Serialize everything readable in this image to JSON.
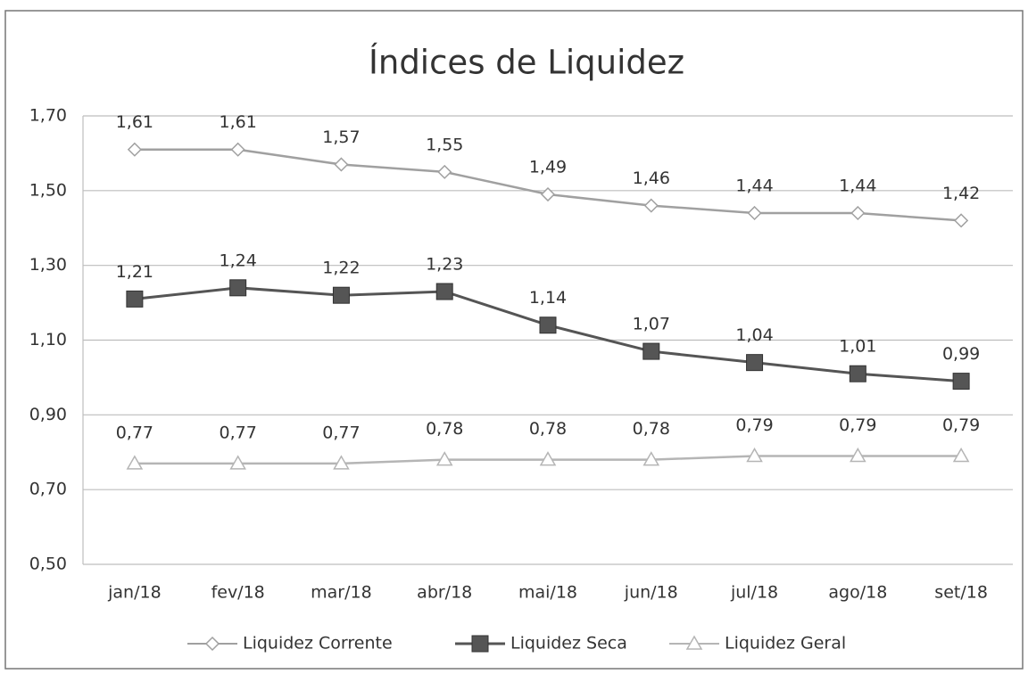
{
  "chart_data": {
    "type": "line",
    "title": "Índices de Liquidez",
    "categories": [
      "jan/18",
      "fev/18",
      "mar/18",
      "abr/18",
      "mai/18",
      "jun/18",
      "jul/18",
      "ago/18",
      "set/18"
    ],
    "series": [
      {
        "name": "Liquidez Corrente",
        "color": "#a0a0a0",
        "marker": "diamond",
        "values": [
          1.61,
          1.61,
          1.57,
          1.55,
          1.49,
          1.46,
          1.44,
          1.44,
          1.42
        ],
        "value_labels": [
          "1,61",
          "1,61",
          "1,57",
          "1,55",
          "1,49",
          "1,46",
          "1,44",
          "1,44",
          "1,42"
        ]
      },
      {
        "name": "Liquidez Seca",
        "color": "#555555",
        "marker": "square",
        "values": [
          1.21,
          1.24,
          1.22,
          1.23,
          1.14,
          1.07,
          1.04,
          1.01,
          0.99
        ],
        "value_labels": [
          "1,21",
          "1,24",
          "1,22",
          "1,23",
          "1,14",
          "1,07",
          "1,04",
          "1,01",
          "0,99"
        ]
      },
      {
        "name": "Liquidez Geral",
        "color": "#b5b5b5",
        "marker": "triangle",
        "values": [
          0.77,
          0.77,
          0.77,
          0.78,
          0.78,
          0.78,
          0.79,
          0.79,
          0.79
        ],
        "value_labels": [
          "0,77",
          "0,77",
          "0,77",
          "0,78",
          "0,78",
          "0,78",
          "0,79",
          "0,79",
          "0,79"
        ]
      }
    ],
    "ylim": [
      0.5,
      1.7
    ],
    "yticks": [
      {
        "value": 0.5,
        "label": "0,50"
      },
      {
        "value": 0.7,
        "label": "0,70"
      },
      {
        "value": 0.9,
        "label": "0,90"
      },
      {
        "value": 1.1,
        "label": "1,10"
      },
      {
        "value": 1.3,
        "label": "1,30"
      },
      {
        "value": 1.5,
        "label": "1,50"
      },
      {
        "value": 1.7,
        "label": "1,70"
      }
    ],
    "grid": true,
    "legend": "bottom"
  }
}
